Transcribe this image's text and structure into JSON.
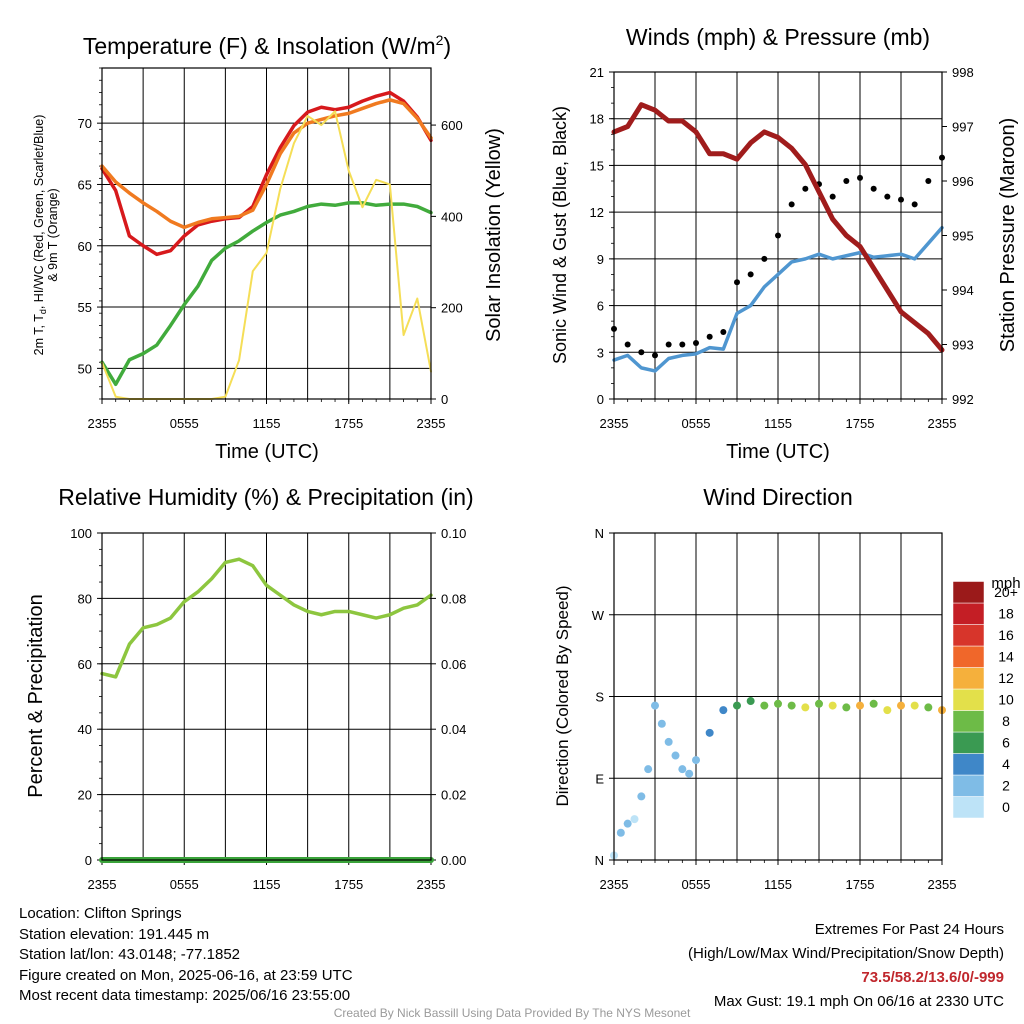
{
  "chart_data": [
    {
      "type": "line",
      "title": "Temperature (F) & Insolation (W/m²)",
      "title_main": "Temperature (F) & Insolation (W/m",
      "title_sup": "2",
      "title_end": ")",
      "xlabel": "Time (UTC)",
      "ylabel_line1": "2m T, T",
      "ylabel_sub": "d",
      "ylabel_line1_rest": ", HI/WC (Red, Green, Scarlet/Blue)",
      "ylabel_line2": "& 9m T (Orange)",
      "y2label": "Solar Insolation (Yellow)",
      "xticks": [
        "2355",
        "0555",
        "1155",
        "1755",
        "2355"
      ],
      "yticks": [
        "50",
        "55",
        "60",
        "65",
        "70"
      ],
      "y2ticks": [
        "0",
        "200",
        "400",
        "600"
      ],
      "ylim": [
        47.5,
        74.5
      ],
      "y2lim": [
        0,
        725
      ],
      "x_hours": [
        0,
        1,
        2,
        3,
        4,
        5,
        6,
        7,
        8,
        9,
        10,
        11,
        12,
        13,
        14,
        15,
        16,
        17,
        18,
        19,
        20,
        21,
        22,
        23,
        24
      ],
      "series": [
        {
          "color": "#d7191c",
          "axis": "left",
          "values": [
            66.3,
            64.5,
            60.8,
            60.0,
            59.3,
            59.6,
            60.8,
            61.7,
            62.0,
            62.2,
            62.3,
            63.2,
            65.8,
            68.0,
            69.8,
            70.9,
            71.3,
            71.1,
            71.3,
            71.8,
            72.2,
            72.5,
            71.8,
            70.5,
            68.6
          ]
        },
        {
          "color": "#f07a20",
          "axis": "left",
          "values": [
            66.5,
            65.2,
            64.3,
            63.5,
            62.8,
            62.0,
            61.5,
            61.9,
            62.2,
            62.3,
            62.4,
            62.9,
            65.0,
            67.5,
            69.2,
            70.0,
            70.3,
            70.6,
            70.8,
            71.2,
            71.6,
            71.9,
            71.6,
            70.4,
            68.8
          ]
        },
        {
          "color": "#41ab3c",
          "axis": "left",
          "values": [
            50.5,
            48.7,
            50.7,
            51.2,
            51.9,
            53.5,
            55.2,
            56.7,
            58.8,
            59.8,
            60.4,
            61.2,
            61.9,
            62.5,
            62.8,
            63.2,
            63.4,
            63.3,
            63.5,
            63.5,
            63.3,
            63.4,
            63.4,
            63.2,
            62.7
          ]
        },
        {
          "color": "#f5de57",
          "axis": "right",
          "values": [
            80,
            5,
            0,
            0,
            0,
            0,
            0,
            0,
            0,
            5,
            85,
            280,
            320,
            460,
            560,
            620,
            600,
            630,
            500,
            420,
            480,
            470,
            140,
            220,
            60
          ]
        }
      ]
    },
    {
      "type": "line",
      "title": "Winds (mph) & Pressure (mb)",
      "xlabel": "Time (UTC)",
      "ylabel": "Sonic Wind & Gust (Blue, Black)",
      "y2label": "Station Pressure (Maroon)",
      "xticks": [
        "2355",
        "0555",
        "1155",
        "1755",
        "2355"
      ],
      "yticks": [
        "0",
        "3",
        "6",
        "9",
        "12",
        "15",
        "18",
        "21"
      ],
      "y2ticks": [
        "992",
        "993",
        "994",
        "995",
        "996",
        "997",
        "998"
      ],
      "ylim": [
        0,
        21
      ],
      "y2lim": [
        992,
        998
      ],
      "x_hours": [
        0,
        1,
        2,
        3,
        4,
        5,
        6,
        7,
        8,
        9,
        10,
        11,
        12,
        13,
        14,
        15,
        16,
        17,
        18,
        19,
        20,
        21,
        22,
        23,
        24
      ],
      "series": [
        {
          "color": "#4f96d0",
          "axis": "left",
          "values": [
            2.5,
            2.8,
            2.0,
            1.8,
            2.6,
            2.8,
            2.9,
            3.3,
            3.2,
            5.5,
            6.0,
            7.2,
            8.0,
            8.8,
            9.0,
            9.3,
            9.0,
            9.2,
            9.4,
            9.1,
            9.2,
            9.3,
            9.0,
            10.0,
            11.0
          ]
        },
        {
          "color": "#000000",
          "axis": "left",
          "values": [
            4.5,
            3.5,
            3.0,
            2.8,
            3.5,
            3.5,
            3.6,
            4.0,
            4.3,
            7.5,
            8.0,
            9.0,
            10.5,
            12.5,
            13.5,
            13.8,
            13.0,
            14.0,
            14.2,
            13.5,
            13.0,
            12.8,
            12.5,
            14.0,
            15.5
          ]
        },
        {
          "color": "#a01c1c",
          "axis": "right",
          "values": [
            996.9,
            997.0,
            997.4,
            997.3,
            997.1,
            997.1,
            996.9,
            996.5,
            996.5,
            996.4,
            996.7,
            996.9,
            996.8,
            996.6,
            996.3,
            995.8,
            995.3,
            995.0,
            994.8,
            994.4,
            994.0,
            993.6,
            993.4,
            993.2,
            992.9
          ]
        }
      ]
    },
    {
      "type": "line",
      "title": "Relative Humidity (%) & Precipitation (in)",
      "ylabel": "Percent & Precipitation",
      "xticks": [
        "2355",
        "0555",
        "1155",
        "1755",
        "2355"
      ],
      "yticks": [
        "0",
        "20",
        "40",
        "60",
        "80",
        "100"
      ],
      "y2ticks": [
        "0.00",
        "0.02",
        "0.04",
        "0.06",
        "0.08",
        "0.10"
      ],
      "ylim": [
        0,
        100
      ],
      "y2lim": [
        0,
        0.1
      ],
      "x_hours": [
        0,
        1,
        2,
        3,
        4,
        5,
        6,
        7,
        8,
        9,
        10,
        11,
        12,
        13,
        14,
        15,
        16,
        17,
        18,
        19,
        20,
        21,
        22,
        23,
        24
      ],
      "series": [
        {
          "color": "#8dc63f",
          "axis": "left",
          "values": [
            57,
            56,
            66,
            71,
            72,
            74,
            79,
            82,
            86,
            91,
            92,
            90,
            84,
            81,
            78,
            76,
            75,
            76,
            76,
            75,
            74,
            75,
            77,
            78,
            81
          ]
        },
        {
          "color": "#3aa33a",
          "axis": "right",
          "values": [
            0,
            0,
            0,
            0,
            0,
            0,
            0,
            0,
            0,
            0,
            0,
            0,
            0,
            0,
            0,
            0,
            0,
            0,
            0,
            0,
            0,
            0,
            0,
            0,
            0
          ]
        }
      ]
    },
    {
      "type": "scatter",
      "title": "Wind Direction",
      "ylabel": "Direction (Colored By Speed)",
      "xticks": [
        "2355",
        "0555",
        "1155",
        "1755",
        "2355"
      ],
      "yticks": [
        "N",
        "E",
        "S",
        "W",
        "N"
      ],
      "ylim": [
        0,
        360
      ],
      "legend_title": "mph",
      "legend_labels": [
        "0",
        "2",
        "4",
        "6",
        "8",
        "10",
        "12",
        "14",
        "16",
        "18",
        "20+"
      ],
      "legend_colors": [
        "#bde3f7",
        "#7fbce6",
        "#3f87c8",
        "#3a9a52",
        "#6dbb47",
        "#e3e04a",
        "#f5b03c",
        "#f0672a",
        "#d7352b",
        "#c41e25",
        "#9b1a1a"
      ],
      "x_hours": [
        0,
        0.5,
        1,
        1.5,
        2,
        2.5,
        3,
        3.5,
        4,
        4.5,
        5,
        5.5,
        6,
        7,
        8,
        9,
        10,
        11,
        12,
        13,
        14,
        15,
        16,
        17,
        18,
        19,
        20,
        21,
        22,
        23,
        24
      ],
      "directions": [
        5,
        30,
        40,
        45,
        70,
        100,
        170,
        150,
        130,
        115,
        100,
        95,
        110,
        140,
        165,
        170,
        175,
        170,
        172,
        170,
        168,
        172,
        170,
        168,
        170,
        172,
        165,
        170,
        170,
        168,
        165
      ],
      "speeds": [
        1,
        2,
        2,
        1,
        2,
        2,
        3,
        3,
        2,
        2,
        2,
        2,
        3,
        4,
        5,
        6,
        7,
        8,
        9,
        9,
        10,
        9,
        11,
        9,
        12,
        8,
        10,
        13,
        10,
        9,
        12
      ]
    }
  ],
  "footer": {
    "location": "Location: Clifton Springs",
    "elevation": "Station elevation: 191.445 m",
    "latlon": "Station lat/lon: 43.0148; -77.1852",
    "created": "Figure created on Mon, 2025-06-16, at 23:59 UTC",
    "recent": "Most recent data timestamp: 2025/06/16 23:55:00",
    "extremes_title": "Extremes For Past 24 Hours",
    "extremes_subtitle": "(High/Low/Max Wind/Precipitation/Snow Depth)",
    "extremes_values": "73.5/58.2/13.6/0/-999",
    "max_gust": "Max Gust: 19.1 mph On 06/16 at 2330 UTC",
    "credit": "Created By Nick Bassill Using Data Provided By The NYS Mesonet"
  }
}
